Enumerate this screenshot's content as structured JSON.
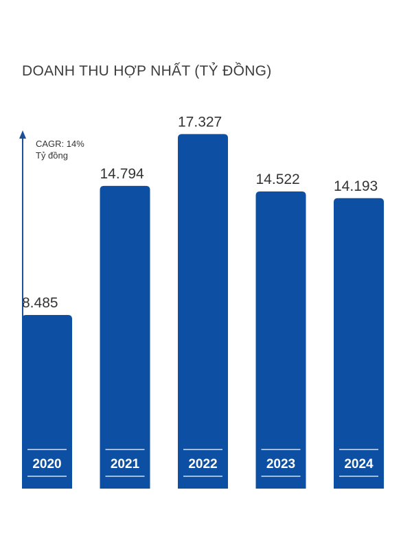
{
  "chart_data": {
    "type": "bar",
    "title": "DOANH THU HỢP NHẤT (TỶ ĐỒNG)",
    "annotation": "CAGR: 14%",
    "ylabel": "Tỷ đồng",
    "categories": [
      "2020",
      "2021",
      "2022",
      "2023",
      "2024"
    ],
    "values": [
      8485,
      14794,
      17327,
      14522,
      14193
    ],
    "value_labels": [
      "8.485",
      "14.794",
      "17.327",
      "14.522",
      "14.193"
    ],
    "ylim": [
      0,
      18000
    ],
    "grid": false,
    "bar_color": "#0D4FA3"
  }
}
